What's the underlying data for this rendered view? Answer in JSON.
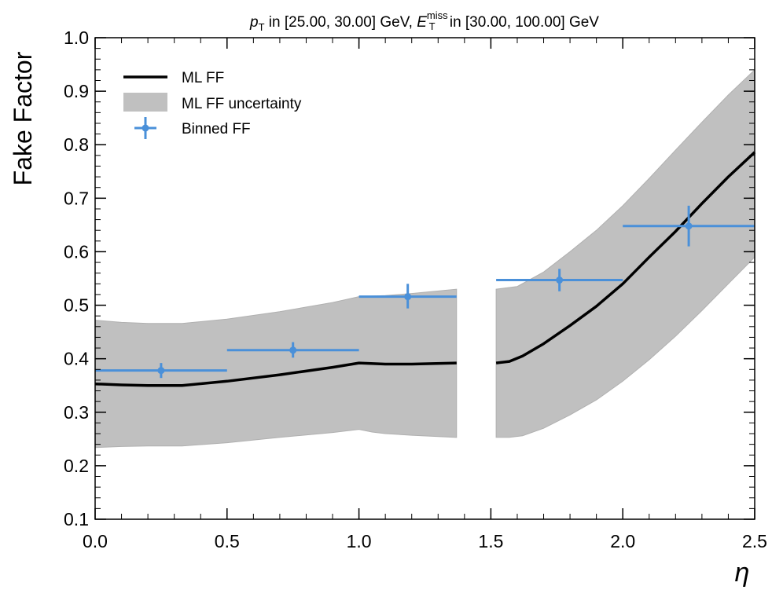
{
  "chart_data": {
    "type": "line",
    "title_parts": {
      "pt_sym": "p",
      "pt_sub": "T",
      "seg1": " in [25.00, 30.00] GeV, ",
      "et_sym": "E",
      "et_sup": "miss",
      "et_sub": "T",
      "seg2": " in [30.00, 100.00] GeV"
    },
    "xlabel": "η",
    "ylabel": "Fake Factor",
    "xlim": [
      0.0,
      2.5
    ],
    "ylim": [
      0.1,
      1.0
    ],
    "xticks": [
      "0.0",
      "0.5",
      "1.0",
      "1.5",
      "2.0",
      "2.5"
    ],
    "yticks": [
      "0.1",
      "0.2",
      "0.3",
      "0.4",
      "0.5",
      "0.6",
      "0.7",
      "0.8",
      "0.9",
      "1.0"
    ],
    "legend": {
      "placement": "top-left",
      "entries": [
        "ML FF",
        "ML FF uncertainty",
        "Binned FF"
      ]
    },
    "colors": {
      "line": "#000000",
      "band": "#c0c0c0",
      "binned": "#4a90d9"
    },
    "series": [
      {
        "name": "ML FF",
        "segments": [
          [
            [
              0.0,
              0.353
            ],
            [
              0.1,
              0.351
            ],
            [
              0.2,
              0.35
            ],
            [
              0.33,
              0.35
            ],
            [
              0.5,
              0.358
            ],
            [
              0.7,
              0.37
            ],
            [
              0.9,
              0.384
            ],
            [
              1.0,
              0.392
            ],
            [
              1.1,
              0.39
            ],
            [
              1.2,
              0.39
            ],
            [
              1.37,
              0.392
            ]
          ],
          [
            [
              1.52,
              0.392
            ],
            [
              1.57,
              0.395
            ],
            [
              1.62,
              0.405
            ],
            [
              1.7,
              0.428
            ],
            [
              1.8,
              0.462
            ],
            [
              1.9,
              0.498
            ],
            [
              2.0,
              0.54
            ],
            [
              2.1,
              0.59
            ],
            [
              2.2,
              0.638
            ],
            [
              2.3,
              0.69
            ],
            [
              2.4,
              0.74
            ],
            [
              2.5,
              0.786
            ]
          ]
        ]
      },
      {
        "name": "ML FF uncertainty",
        "segments": [
          {
            "upper": [
              [
                0.0,
                0.472
              ],
              [
                0.1,
                0.468
              ],
              [
                0.2,
                0.466
              ],
              [
                0.33,
                0.466
              ],
              [
                0.5,
                0.474
              ],
              [
                0.7,
                0.488
              ],
              [
                0.9,
                0.505
              ],
              [
                1.0,
                0.516
              ],
              [
                1.1,
                0.518
              ],
              [
                1.2,
                0.522
              ],
              [
                1.37,
                0.53
              ]
            ],
            "lower": [
              [
                0.0,
                0.234
              ],
              [
                0.1,
                0.236
              ],
              [
                0.2,
                0.237
              ],
              [
                0.33,
                0.237
              ],
              [
                0.5,
                0.243
              ],
              [
                0.7,
                0.253
              ],
              [
                0.9,
                0.262
              ],
              [
                1.0,
                0.268
              ],
              [
                1.05,
                0.263
              ],
              [
                1.1,
                0.26
              ],
              [
                1.2,
                0.257
              ],
              [
                1.37,
                0.253
              ]
            ]
          },
          {
            "upper": [
              [
                1.52,
                0.53
              ],
              [
                1.6,
                0.535
              ],
              [
                1.7,
                0.562
              ],
              [
                1.8,
                0.6
              ],
              [
                1.9,
                0.64
              ],
              [
                2.0,
                0.686
              ],
              [
                2.1,
                0.737
              ],
              [
                2.2,
                0.79
              ],
              [
                2.3,
                0.842
              ],
              [
                2.4,
                0.893
              ],
              [
                2.5,
                0.94
              ]
            ],
            "lower": [
              [
                1.52,
                0.253
              ],
              [
                1.57,
                0.253
              ],
              [
                1.62,
                0.256
              ],
              [
                1.7,
                0.27
              ],
              [
                1.8,
                0.295
              ],
              [
                1.9,
                0.323
              ],
              [
                2.0,
                0.358
              ],
              [
                2.1,
                0.398
              ],
              [
                2.2,
                0.442
              ],
              [
                2.3,
                0.49
              ],
              [
                2.4,
                0.54
              ],
              [
                2.5,
                0.59
              ]
            ]
          }
        ]
      },
      {
        "name": "Binned FF",
        "points": [
          {
            "x": 0.25,
            "xlo": 0.0,
            "xhi": 0.5,
            "y": 0.378,
            "ylo": 0.364,
            "yhi": 0.392
          },
          {
            "x": 0.75,
            "xlo": 0.5,
            "xhi": 1.0,
            "y": 0.416,
            "ylo": 0.402,
            "yhi": 0.431
          },
          {
            "x": 1.185,
            "xlo": 1.0,
            "xhi": 1.37,
            "y": 0.516,
            "ylo": 0.494,
            "yhi": 0.54
          },
          {
            "x": 1.76,
            "xlo": 1.52,
            "xhi": 2.0,
            "y": 0.547,
            "ylo": 0.526,
            "yhi": 0.568
          },
          {
            "x": 2.25,
            "xlo": 2.0,
            "xhi": 2.5,
            "y": 0.648,
            "ylo": 0.61,
            "yhi": 0.686
          }
        ]
      }
    ]
  }
}
